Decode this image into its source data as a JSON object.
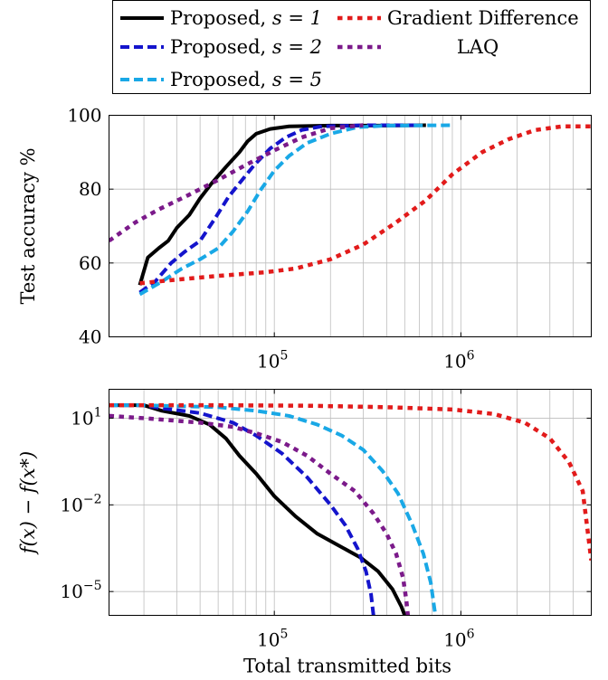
{
  "legend": [
    {
      "label_text": "Proposed, ",
      "label_math": "s = 1",
      "color": "#000000",
      "dash": "solid"
    },
    {
      "label_text": "Proposed, ",
      "label_math": "s = 2",
      "color": "#1414cc",
      "dash": "dashed"
    },
    {
      "label_text": "Proposed, ",
      "label_math": "s = 5",
      "color": "#19a8e6",
      "dash": "dashed"
    },
    {
      "label_text": "Gradient Difference",
      "label_math": "",
      "color": "#e21b1b",
      "dash": "dotted"
    },
    {
      "label_text": "LAQ",
      "label_math": "",
      "color": "#7b1a8a",
      "dash": "dotted"
    }
  ],
  "chart_data": [
    {
      "type": "line",
      "xscale": "log",
      "xlim": [
        13000,
        5000000
      ],
      "ylim": [
        40,
        100
      ],
      "xlabel": "",
      "ylabel": "Test accuracy %",
      "xticks": [
        {
          "value": 100000,
          "base": "10",
          "exp": "5"
        },
        {
          "value": 1000000,
          "base": "10",
          "exp": "6"
        }
      ],
      "yticks": [
        40,
        60,
        80,
        100
      ],
      "grid": true,
      "series": [
        {
          "name": "Proposed, s = 1",
          "color": "#000000",
          "dash": "solid",
          "points": [
            [
              19000,
              54
            ],
            [
              21000,
              61.5
            ],
            [
              24000,
              64
            ],
            [
              27000,
              66
            ],
            [
              30000,
              69.5
            ],
            [
              35000,
              73
            ],
            [
              40000,
              77.5
            ],
            [
              46000,
              81.5
            ],
            [
              55000,
              86
            ],
            [
              65000,
              90
            ],
            [
              72000,
              93
            ],
            [
              80000,
              95
            ],
            [
              95000,
              96.3
            ],
            [
              120000,
              97
            ],
            [
              200000,
              97.2
            ],
            [
              400000,
              97.2
            ],
            [
              650000,
              97.3
            ]
          ]
        },
        {
          "name": "Proposed, s = 2",
          "color": "#1414cc",
          "dash": "dashed",
          "points": [
            [
              19000,
              52
            ],
            [
              23000,
              55
            ],
            [
              28000,
              60
            ],
            [
              33000,
              63
            ],
            [
              40000,
              66
            ],
            [
              48000,
              72
            ],
            [
              57000,
              78
            ],
            [
              66000,
              82
            ],
            [
              78000,
              86.5
            ],
            [
              95000,
              91
            ],
            [
              115000,
              94
            ],
            [
              140000,
              96
            ],
            [
              180000,
              97
            ],
            [
              300000,
              97.3
            ],
            [
              600000,
              97.3
            ]
          ]
        },
        {
          "name": "Proposed, s = 5",
          "color": "#19a8e6",
          "dash": "dashed",
          "points": [
            [
              19000,
              51.5
            ],
            [
              25000,
              55
            ],
            [
              32000,
              58.5
            ],
            [
              40000,
              61
            ],
            [
              50000,
              64
            ],
            [
              60000,
              68.5
            ],
            [
              72000,
              74
            ],
            [
              85000,
              80
            ],
            [
              100000,
              85
            ],
            [
              120000,
              89
            ],
            [
              150000,
              92.5
            ],
            [
              200000,
              95
            ],
            [
              280000,
              96.8
            ],
            [
              400000,
              97.2
            ],
            [
              900000,
              97.3
            ]
          ]
        },
        {
          "name": "Gradient Difference",
          "color": "#e21b1b",
          "dash": "dotted",
          "points": [
            [
              19000,
              54.5
            ],
            [
              30000,
              55.5
            ],
            [
              50000,
              56.5
            ],
            [
              90000,
              57.5
            ],
            [
              130000,
              58.5
            ],
            [
              200000,
              61
            ],
            [
              300000,
              65
            ],
            [
              450000,
              71
            ],
            [
              650000,
              77
            ],
            [
              900000,
              84
            ],
            [
              1300000,
              90
            ],
            [
              1800000,
              93.5
            ],
            [
              2500000,
              96
            ],
            [
              3500000,
              97
            ],
            [
              5000000,
              97
            ]
          ]
        },
        {
          "name": "LAQ",
          "color": "#7b1a8a",
          "dash": "dotted",
          "points": [
            [
              13000,
              66
            ],
            [
              18000,
              71
            ],
            [
              24000,
              74.5
            ],
            [
              35000,
              78.5
            ],
            [
              50000,
              82.5
            ],
            [
              70000,
              86.5
            ],
            [
              100000,
              90.5
            ],
            [
              140000,
              94
            ],
            [
              200000,
              96.5
            ],
            [
              300000,
              97.3
            ]
          ]
        }
      ]
    },
    {
      "type": "line",
      "xscale": "log",
      "yscale": "log",
      "xlim": [
        13000,
        5000000
      ],
      "ylim": [
        1.5e-06,
        100
      ],
      "xlabel": "Total transmitted bits",
      "ylabel": "f(x) − f(x*)",
      "xticks": [
        {
          "value": 100000,
          "base": "10",
          "exp": "5"
        },
        {
          "value": 1000000,
          "base": "10",
          "exp": "6"
        }
      ],
      "yticks": [
        {
          "value": 10,
          "base": "10",
          "exp": "1"
        },
        {
          "value": 0.01,
          "base": "10",
          "exp": "−2"
        },
        {
          "value": 1e-05,
          "base": "10",
          "exp": "−5"
        }
      ],
      "grid": true,
      "series": [
        {
          "name": "Proposed, s = 1",
          "color": "#000000",
          "dash": "solid",
          "points": [
            [
              13000,
              28
            ],
            [
              20000,
              28
            ],
            [
              25000,
              18
            ],
            [
              35000,
              12
            ],
            [
              45000,
              6
            ],
            [
              55000,
              2
            ],
            [
              65000,
              0.5
            ],
            [
              80000,
              0.12
            ],
            [
              100000,
              0.02
            ],
            [
              130000,
              0.004
            ],
            [
              170000,
              0.001
            ],
            [
              220000,
              0.0004
            ],
            [
              290000,
              0.00015
            ],
            [
              360000,
              5e-05
            ],
            [
              430000,
              1.2e-05
            ],
            [
              480000,
              3e-06
            ],
            [
              500000,
              1.5e-06
            ]
          ]
        },
        {
          "name": "Proposed, s = 2",
          "color": "#1414cc",
          "dash": "dashed",
          "points": [
            [
              13000,
              28
            ],
            [
              20000,
              28
            ],
            [
              25000,
              22
            ],
            [
              40000,
              15
            ],
            [
              60000,
              7
            ],
            [
              80000,
              2.5
            ],
            [
              110000,
              0.6
            ],
            [
              150000,
              0.09
            ],
            [
              200000,
              0.01
            ],
            [
              240000,
              0.002
            ],
            [
              280000,
              0.0003
            ],
            [
              310000,
              5e-05
            ],
            [
              330000,
              8e-06
            ],
            [
              340000,
              1.5e-06
            ]
          ]
        },
        {
          "name": "Proposed, s = 5",
          "color": "#19a8e6",
          "dash": "dashed",
          "points": [
            [
              13000,
              28
            ],
            [
              20000,
              28
            ],
            [
              30000,
              26
            ],
            [
              50000,
              24
            ],
            [
              80000,
              18
            ],
            [
              120000,
              12
            ],
            [
              170000,
              6
            ],
            [
              230000,
              2.5
            ],
            [
              300000,
              0.8
            ],
            [
              380000,
              0.15
            ],
            [
              460000,
              0.025
            ],
            [
              550000,
              0.002
            ],
            [
              630000,
              0.0002
            ],
            [
              690000,
              2e-05
            ],
            [
              730000,
              1.5e-06
            ]
          ]
        },
        {
          "name": "Gradient Difference",
          "color": "#e21b1b",
          "dash": "dotted",
          "points": [
            [
              13000,
              28
            ],
            [
              50000,
              28
            ],
            [
              150000,
              27
            ],
            [
              400000,
              24
            ],
            [
              900000,
              20
            ],
            [
              1500000,
              14
            ],
            [
              2200000,
              7
            ],
            [
              3000000,
              2
            ],
            [
              3800000,
              0.3
            ],
            [
              4500000,
              0.03
            ],
            [
              5000000,
              0.00012
            ]
          ]
        },
        {
          "name": "LAQ",
          "color": "#7b1a8a",
          "dash": "dotted",
          "points": [
            [
              13000,
              12
            ],
            [
              20000,
              10
            ],
            [
              40000,
              7
            ],
            [
              60000,
              5
            ],
            [
              80000,
              3
            ],
            [
              110000,
              1.5
            ],
            [
              150000,
              0.5
            ],
            [
              200000,
              0.12
            ],
            [
              270000,
              0.03
            ],
            [
              340000,
              0.005
            ],
            [
              400000,
              0.001
            ],
            [
              450000,
              0.0002
            ],
            [
              490000,
              3e-05
            ],
            [
              510000,
              5e-06
            ],
            [
              520000,
              1.5e-06
            ]
          ]
        }
      ]
    }
  ]
}
